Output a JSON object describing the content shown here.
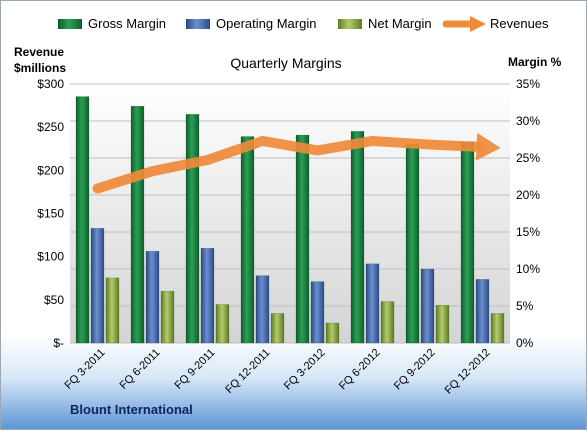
{
  "chart_data": {
    "type": "bar",
    "title": "Quarterly Margins",
    "company": "Blount International",
    "left_axis_label_line1": "Revenue",
    "left_axis_label_line2": "$millions",
    "right_axis_label": "Margin %",
    "categories": [
      "FQ 3-2011",
      "FQ 6-2011",
      "FQ 9-2011",
      "FQ 12-2011",
      "FQ 3-2012",
      "FQ 6-2012",
      "FQ 9-2012",
      "FQ 12-2012"
    ],
    "left_ticks": [
      "$-",
      "$50",
      "$100",
      "$150",
      "$200",
      "$250",
      "$300"
    ],
    "left_tick_values": [
      0,
      50,
      100,
      150,
      200,
      250,
      300
    ],
    "right_ticks": [
      "0%",
      "5%",
      "10%",
      "15%",
      "20%",
      "25%",
      "30%",
      "35%"
    ],
    "right_tick_values": [
      0,
      5,
      10,
      15,
      20,
      25,
      30,
      35
    ],
    "ylim_left": [
      0,
      300
    ],
    "ylim_right": [
      0,
      35
    ],
    "grid": true,
    "legend_position": "top",
    "series": [
      {
        "name": "Gross Margin",
        "kind": "bar",
        "axis": "right",
        "color": "#1e8a44",
        "values": [
          33.3,
          32.0,
          30.9,
          27.9,
          28.1,
          28.6,
          26.9,
          27.2
        ]
      },
      {
        "name": "Operating Margin",
        "kind": "bar",
        "axis": "right",
        "color": "#4a6fb0",
        "values": [
          15.5,
          12.4,
          12.8,
          9.1,
          8.3,
          10.7,
          10.0,
          8.6
        ]
      },
      {
        "name": "Net Margin",
        "kind": "bar",
        "axis": "right",
        "color": "#8fae3e",
        "values": [
          8.8,
          7.0,
          5.2,
          4.0,
          2.7,
          5.6,
          5.1,
          4.0
        ]
      },
      {
        "name": "Revenues",
        "kind": "line",
        "axis": "left",
        "color": "#ef8a3a",
        "values": [
          179,
          199,
          212,
          234,
          223,
          234,
          230,
          227
        ]
      }
    ]
  }
}
